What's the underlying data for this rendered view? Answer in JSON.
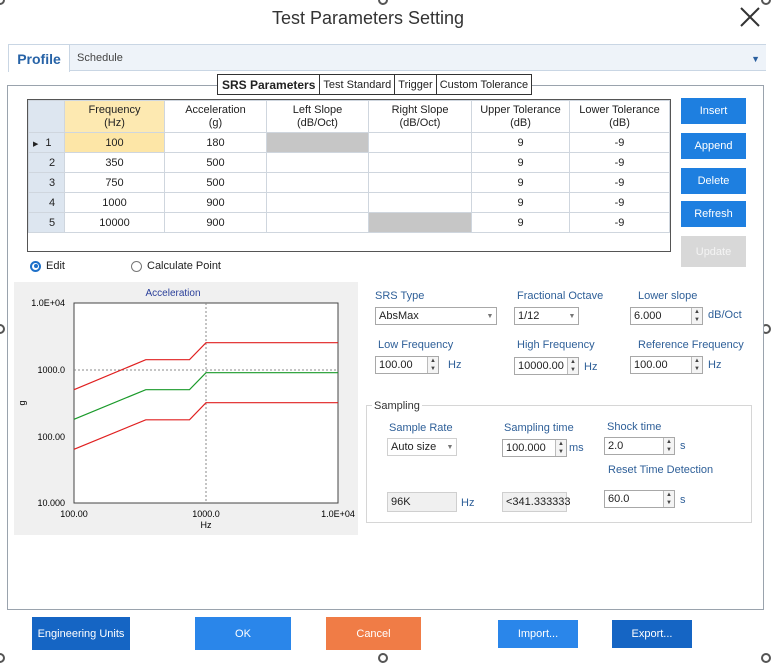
{
  "window": {
    "title": "Test Parameters Setting"
  },
  "header": {
    "profile_tab": "Profile",
    "schedule_label": "Schedule"
  },
  "subtabs": [
    "SRS Parameters",
    "Test Standard",
    "Trigger",
    "Custom Tolerance"
  ],
  "table": {
    "columns": [
      {
        "line1": "Frequency",
        "line2": "(Hz)"
      },
      {
        "line1": "Acceleration",
        "line2": "(g)"
      },
      {
        "line1": "Left Slope",
        "line2": "(dB/Oct)"
      },
      {
        "line1": "Right Slope",
        "line2": "(dB/Oct)"
      },
      {
        "line1": "Upper Tolerance",
        "line2": "(dB)"
      },
      {
        "line1": "Lower Tolerance",
        "line2": "(dB)"
      }
    ],
    "current_row_marker": "▶",
    "rows": [
      {
        "no": "1",
        "freq": "100",
        "accel": "180",
        "left": "",
        "right": "",
        "upper": "9",
        "lower": "-9"
      },
      {
        "no": "2",
        "freq": "350",
        "accel": "500",
        "left": "",
        "right": "",
        "upper": "9",
        "lower": "-9"
      },
      {
        "no": "3",
        "freq": "750",
        "accel": "500",
        "left": "",
        "right": "",
        "upper": "9",
        "lower": "-9"
      },
      {
        "no": "4",
        "freq": "1000",
        "accel": "900",
        "left": "",
        "right": "",
        "upper": "9",
        "lower": "-9"
      },
      {
        "no": "5",
        "freq": "10000",
        "accel": "900",
        "left": "",
        "right": "",
        "upper": "9",
        "lower": "-9"
      }
    ]
  },
  "side_buttons": {
    "insert": "Insert",
    "append": "Append",
    "delete": "Delete",
    "refresh": "Refresh",
    "update": "Update"
  },
  "mode": {
    "edit": "Edit",
    "calculate": "Calculate Point",
    "selected": "edit"
  },
  "params": {
    "srs_type_label": "SRS Type",
    "srs_type_value": "AbsMax",
    "fractional_octave_label": "Fractional Octave",
    "fractional_octave_value": "1/12",
    "lower_slope_label": "Lower slope",
    "lower_slope_value": "6.000",
    "lower_slope_unit": "dB/Oct",
    "low_freq_label": "Low Frequency",
    "low_freq_value": "100.00",
    "low_freq_unit": "Hz",
    "high_freq_label": "High Frequency",
    "high_freq_value": "10000.00",
    "high_freq_unit": "Hz",
    "ref_freq_label": "Reference Frequency",
    "ref_freq_value": "100.00",
    "ref_freq_unit": "Hz"
  },
  "sampling": {
    "title": "Sampling",
    "sample_rate_label": "Sample Rate",
    "sample_rate_value": "Auto size",
    "sampling_time_label": "Sampling time",
    "sampling_time_value": "100.000",
    "sampling_time_unit": "ms",
    "shock_time_label": "Shock time",
    "shock_time_value": "2.0",
    "shock_time_unit": "s",
    "reset_label": "Reset Time Detection",
    "rate_display": "96K",
    "rate_unit": "Hz",
    "time_display": "<341.333333",
    "reset_value": "60.0",
    "reset_unit": "s"
  },
  "bottom_buttons": {
    "engineering_units": "Engineering Units",
    "ok": "OK",
    "cancel": "Cancel",
    "import": "Import...",
    "export": "Export..."
  },
  "colors": {
    "accent": "#1e7fe0",
    "ok": "#2a86ea",
    "cancel": "#f07c46",
    "dark_button": "#1565c4",
    "upper_line": "#e02020",
    "lower_line": "#e02020",
    "profile_line": "#1a9a2a"
  },
  "chart_data": {
    "type": "line",
    "title": "Acceleration",
    "xlabel": "Hz",
    "ylabel": "g",
    "xscale": "log",
    "yscale": "log",
    "xlim": [
      100,
      10000
    ],
    "ylim": [
      10,
      10000
    ],
    "xticks": [
      "100.00",
      "1000.0",
      "1.0E+04"
    ],
    "yticks": [
      "1.0E+04",
      "1000.0",
      "100.00",
      "10.000"
    ],
    "grid": "dotted lines at 1000 (x) and 1000 (y)",
    "series": [
      {
        "color": "#e02020",
        "x": [
          100,
          350,
          750,
          1000,
          10000
        ],
        "y": [
          500,
          1410,
          1410,
          2540,
          2540
        ]
      },
      {
        "color": "#1a9a2a",
        "x": [
          100,
          350,
          750,
          1000,
          10000
        ],
        "y": [
          180,
          500,
          500,
          900,
          900
        ]
      },
      {
        "color": "#e02020",
        "x": [
          100,
          350,
          750,
          1000,
          10000
        ],
        "y": [
          64,
          177,
          177,
          320,
          320
        ]
      }
    ]
  }
}
